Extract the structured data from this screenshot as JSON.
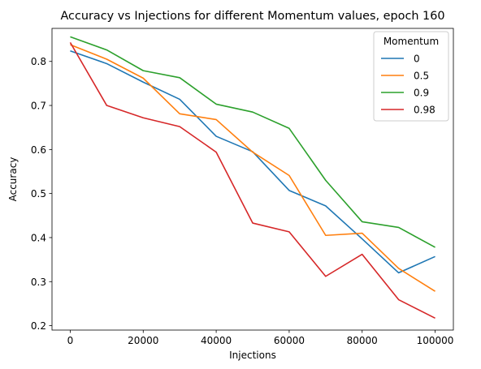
{
  "chart_data": {
    "type": "line",
    "title": "Accuracy vs Injections for different Momentum values, epoch 160",
    "xlabel": "Injections",
    "ylabel": "Accuracy",
    "xlim": [
      -5000,
      105000
    ],
    "ylim": [
      0.19,
      0.875
    ],
    "xticks": [
      0,
      20000,
      40000,
      60000,
      80000,
      100000
    ],
    "xtick_labels": [
      "0",
      "20000",
      "40000",
      "60000",
      "80000",
      "100000"
    ],
    "yticks": [
      0.2,
      0.3,
      0.4,
      0.5,
      0.6,
      0.7,
      0.8
    ],
    "ytick_labels": [
      "0.2",
      "0.3",
      "0.4",
      "0.5",
      "0.6",
      "0.7",
      "0.8"
    ],
    "grid": false,
    "legend": {
      "title": "Momentum",
      "placement": "top-right"
    },
    "x": [
      0,
      10000,
      20000,
      30000,
      40000,
      50000,
      60000,
      70000,
      80000,
      90000,
      100000
    ],
    "series": [
      {
        "name": "0",
        "color": "#1f77b4",
        "values": [
          0.824,
          0.795,
          0.753,
          0.714,
          0.63,
          0.595,
          0.507,
          0.472,
          0.397,
          0.32,
          0.357
        ]
      },
      {
        "name": "0.5",
        "color": "#ff7f0e",
        "values": [
          0.838,
          0.805,
          0.762,
          0.681,
          0.668,
          0.594,
          0.541,
          0.405,
          0.41,
          0.33,
          0.278
        ]
      },
      {
        "name": "0.9",
        "color": "#2ca02c",
        "values": [
          0.856,
          0.826,
          0.779,
          0.763,
          0.703,
          0.685,
          0.648,
          0.53,
          0.436,
          0.423,
          0.378
        ]
      },
      {
        "name": "0.98",
        "color": "#d62728",
        "values": [
          0.843,
          0.7,
          0.672,
          0.652,
          0.594,
          0.433,
          0.413,
          0.312,
          0.362,
          0.259,
          0.217
        ]
      }
    ]
  }
}
